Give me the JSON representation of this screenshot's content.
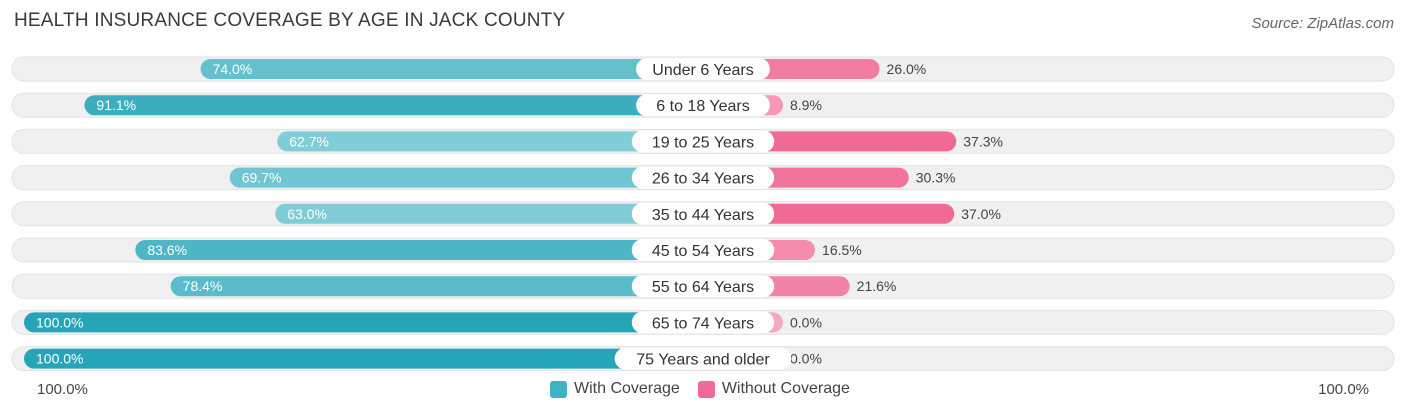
{
  "header": {
    "title": "HEALTH INSURANCE COVERAGE BY AGE IN JACK COUNTY",
    "source": "Source: ZipAtlas.com"
  },
  "axis": {
    "left_label": "100.0%",
    "right_label": "100.0%"
  },
  "legend": {
    "with_label": "With Coverage",
    "without_label": "Without Coverage"
  },
  "colors": {
    "with": "#3fb3c4",
    "with_light": "#86cfd9",
    "with_dark": "#27a5b8",
    "without": "#f06a93",
    "without_light": "#f7a7c0",
    "track": "#f0f0f0"
  },
  "chart_data": {
    "type": "bar",
    "orientation": "horizontal-diverging",
    "title": "HEALTH INSURANCE COVERAGE BY AGE IN JACK COUNTY",
    "categories": [
      "Under 6 Years",
      "6 to 18 Years",
      "19 to 25 Years",
      "26 to 34 Years",
      "35 to 44 Years",
      "45 to 54 Years",
      "55 to 64 Years",
      "65 to 74 Years",
      "75 Years and older"
    ],
    "series": [
      {
        "name": "With Coverage",
        "values": [
          74.0,
          91.1,
          62.7,
          69.7,
          63.0,
          83.6,
          78.4,
          100.0,
          100.0
        ],
        "labels": [
          "74.0%",
          "91.1%",
          "62.7%",
          "69.7%",
          "63.0%",
          "83.6%",
          "78.4%",
          "100.0%",
          "100.0%"
        ]
      },
      {
        "name": "Without Coverage",
        "values": [
          26.0,
          8.9,
          37.3,
          30.3,
          37.0,
          16.5,
          21.6,
          0.0,
          0.0
        ],
        "labels": [
          "26.0%",
          "8.9%",
          "37.3%",
          "30.3%",
          "37.0%",
          "16.5%",
          "21.6%",
          "0.0%",
          "0.0%"
        ]
      }
    ],
    "xlim": [
      -100,
      100
    ],
    "legend_position": "bottom-center"
  }
}
